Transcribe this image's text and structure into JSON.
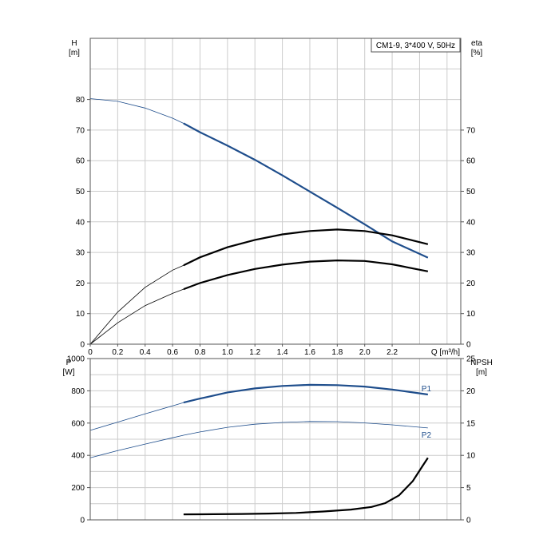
{
  "chart_data": [
    {
      "type": "line",
      "id": "upper",
      "title_box": "CM1-9, 3*400 V, 50Hz",
      "left_axis": {
        "label": "H",
        "unit": "[m]",
        "ticks": [
          0,
          10,
          20,
          30,
          40,
          50,
          60,
          70,
          80
        ],
        "ylim": [
          0,
          100
        ]
      },
      "right_axis": {
        "label": "eta",
        "unit": "[%]",
        "ticks": [
          0,
          10,
          20,
          30,
          40,
          50,
          60,
          70
        ],
        "ylim": [
          0,
          100
        ]
      },
      "x_axis": {
        "label": "Q [m³/h]",
        "ticks": [
          "0",
          "0.2",
          "0.4",
          "0.6",
          "0.8",
          "1.0",
          "1.2",
          "1.4",
          "1.6",
          "1.8",
          "2.0",
          "2.2"
        ],
        "xlim": [
          0,
          2.7
        ]
      },
      "grid": true,
      "series": [
        {
          "axis": "left",
          "color": "#1f4e8c",
          "points": [
            [
              0,
              80.3
            ],
            [
              0.2,
              79.4
            ],
            [
              0.4,
              77.2
            ],
            [
              0.6,
              73.9
            ],
            [
              0.68,
              72.2
            ],
            [
              0.8,
              69.3
            ],
            [
              1.0,
              64.9
            ],
            [
              1.2,
              60.3
            ],
            [
              1.4,
              55.2
            ],
            [
              1.6,
              49.9
            ],
            [
              1.8,
              44.6
            ],
            [
              2.0,
              39.2
            ],
            [
              2.2,
              33.6
            ],
            [
              2.46,
              28.3
            ]
          ],
          "duty_from": 0.68
        },
        {
          "axis": "right",
          "color": "#000000",
          "points": [
            [
              0,
              0
            ],
            [
              0.2,
              10.5
            ],
            [
              0.4,
              18.6
            ],
            [
              0.6,
              24.2
            ],
            [
              0.68,
              25.8
            ],
            [
              0.8,
              28.4
            ],
            [
              1.0,
              31.7
            ],
            [
              1.2,
              34.1
            ],
            [
              1.4,
              35.9
            ],
            [
              1.6,
              37.0
            ],
            [
              1.8,
              37.5
            ],
            [
              2.0,
              37.0
            ],
            [
              2.2,
              35.6
            ],
            [
              2.46,
              32.7
            ]
          ],
          "duty_from": 0.68
        },
        {
          "axis": "right",
          "color": "#000000",
          "points": [
            [
              0,
              0
            ],
            [
              0.2,
              7.0
            ],
            [
              0.4,
              12.6
            ],
            [
              0.6,
              16.6
            ],
            [
              0.68,
              18.0
            ],
            [
              0.8,
              20.0
            ],
            [
              1.0,
              22.6
            ],
            [
              1.2,
              24.6
            ],
            [
              1.4,
              26.0
            ],
            [
              1.6,
              27.0
            ],
            [
              1.8,
              27.4
            ],
            [
              2.0,
              27.2
            ],
            [
              2.2,
              26.1
            ],
            [
              2.46,
              23.8
            ]
          ],
          "duty_from": 0.68
        }
      ]
    },
    {
      "type": "line",
      "id": "lower",
      "left_axis": {
        "label": "P",
        "unit": "[W]",
        "ticks": [
          0,
          200,
          400,
          600,
          800,
          1000
        ],
        "ylim": [
          0,
          1000
        ]
      },
      "right_axis": {
        "label": "NPSH",
        "unit": "[m]",
        "ticks": [
          0,
          5,
          10,
          15,
          20,
          25
        ],
        "ylim": [
          0,
          25
        ]
      },
      "x_axis": {
        "xlim": [
          0,
          2.7
        ]
      },
      "grid": true,
      "series": [
        {
          "name": "P1",
          "axis": "left",
          "color": "#1f4e8c",
          "points": [
            [
              0,
              555
            ],
            [
              0.2,
              606
            ],
            [
              0.4,
              657
            ],
            [
              0.6,
              707
            ],
            [
              0.68,
              727
            ],
            [
              0.8,
              752
            ],
            [
              1.0,
              790
            ],
            [
              1.2,
              815
            ],
            [
              1.4,
              830
            ],
            [
              1.6,
              837
            ],
            [
              1.8,
              835
            ],
            [
              2.0,
              826
            ],
            [
              2.2,
              808
            ],
            [
              2.46,
              777
            ]
          ],
          "duty_from": 0.68
        },
        {
          "name": "P2",
          "axis": "left",
          "color": "#1f4e8c",
          "points": [
            [
              0,
              385
            ],
            [
              0.2,
              429
            ],
            [
              0.4,
              470
            ],
            [
              0.6,
              509
            ],
            [
              0.68,
              525
            ],
            [
              0.8,
              545
            ],
            [
              1.0,
              574
            ],
            [
              1.2,
              593
            ],
            [
              1.4,
              604
            ],
            [
              1.6,
              610
            ],
            [
              1.8,
              609
            ],
            [
              2.0,
              601
            ],
            [
              2.2,
              589
            ],
            [
              2.46,
              570
            ]
          ],
          "duty_from": 99
        },
        {
          "axis": "right",
          "color": "#000000",
          "points": [
            [
              0.68,
              0.85
            ],
            [
              0.9,
              0.88
            ],
            [
              1.1,
              0.92
            ],
            [
              1.3,
              0.98
            ],
            [
              1.5,
              1.08
            ],
            [
              1.7,
              1.3
            ],
            [
              1.9,
              1.6
            ],
            [
              2.05,
              2.0
            ],
            [
              2.15,
              2.6
            ],
            [
              2.25,
              3.8
            ],
            [
              2.35,
              6.0
            ],
            [
              2.42,
              8.3
            ],
            [
              2.46,
              9.6
            ]
          ],
          "duty_from": 0.68
        }
      ]
    }
  ]
}
